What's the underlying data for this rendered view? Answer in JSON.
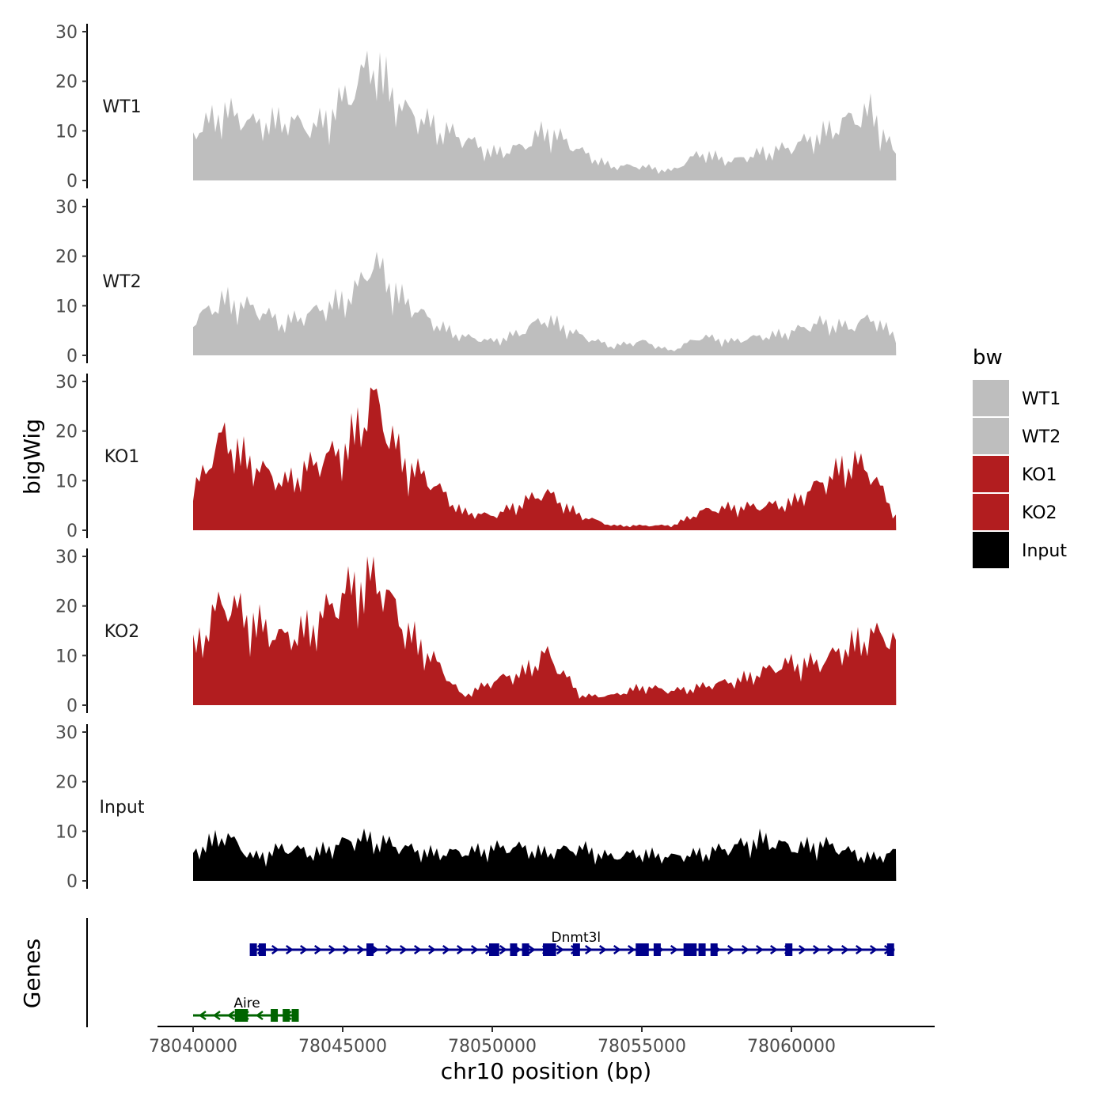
{
  "chart_data": {
    "type": "area",
    "ylabel": "bigWig",
    "xlabel": "chr10 position (bp)",
    "xlim": [
      78037600,
      78063900
    ],
    "ylim": [
      0,
      30
    ],
    "y_ticks": [
      "0",
      "10",
      "20",
      "30"
    ],
    "x_ticks": [
      {
        "value": 78040000,
        "label": "78040000"
      },
      {
        "value": 78045000,
        "label": "78045000"
      },
      {
        "value": 78050000,
        "label": "78050000"
      },
      {
        "value": 78055000,
        "label": "78055000"
      },
      {
        "value": 78060000,
        "label": "78060000"
      }
    ],
    "legend": {
      "title": "bw",
      "position": "right",
      "items": [
        {
          "label": "WT1",
          "color": "#bebebe"
        },
        {
          "label": "WT2",
          "color": "#bebebe"
        },
        {
          "label": "KO1",
          "color": "#b21d1f"
        },
        {
          "label": "KO2",
          "color": "#b21d1f"
        },
        {
          "label": "Input",
          "color": "#000000"
        }
      ]
    },
    "x_positions": [
      78040000,
      78041000,
      78042000,
      78043000,
      78044000,
      78045000,
      78045500,
      78046000,
      78047000,
      78048000,
      78049000,
      78050000,
      78051000,
      78051800,
      78053000,
      78054000,
      78055000,
      78056000,
      78057000,
      78058000,
      78059000,
      78060000,
      78061000,
      78062000,
      78062700,
      78063500
    ],
    "series": [
      {
        "name": "WT1",
        "color": "#bebebe",
        "values": [
          10,
          15,
          12,
          13,
          11,
          17,
          20,
          26,
          15,
          12,
          9,
          6,
          7,
          11,
          6,
          3,
          3,
          2,
          6,
          4,
          6,
          7,
          10,
          13,
          15,
          5
        ]
      },
      {
        "name": "WT2",
        "color": "#bebebe",
        "values": [
          7,
          12,
          10,
          7,
          9,
          12,
          14,
          20,
          12,
          7,
          4,
          3,
          5,
          8,
          4,
          2,
          3,
          1,
          4,
          3,
          4,
          5,
          7,
          6,
          8,
          4
        ]
      },
      {
        "name": "KO1",
        "color": "#b21d1f",
        "values": [
          8,
          20,
          14,
          10,
          14,
          17,
          22,
          28,
          15,
          10,
          4,
          3,
          6,
          8,
          3,
          1,
          1,
          1,
          4,
          5,
          5,
          6,
          10,
          15,
          12,
          3
        ]
      },
      {
        "name": "KO2",
        "color": "#b21d1f",
        "values": [
          12,
          22,
          18,
          14,
          17,
          23,
          26,
          29,
          17,
          10,
          2,
          5,
          7,
          11,
          2,
          2,
          4,
          3,
          4,
          5,
          7,
          9,
          9,
          13,
          15,
          14
        ]
      },
      {
        "name": "Input",
        "color": "#000000",
        "values": [
          6,
          10,
          5,
          7,
          6,
          8,
          9,
          9,
          7,
          6,
          6,
          7,
          7,
          6,
          7,
          5,
          6,
          5,
          6,
          7,
          9,
          7,
          8,
          6,
          5,
          6
        ]
      }
    ],
    "genes": {
      "track_label": "Genes",
      "items": [
        {
          "name": "Dnmt3l",
          "start": 78041950,
          "end": 78063450,
          "strand": "+",
          "color": "#00008b",
          "exons": [
            78042000,
            78042300,
            78045900,
            78050000,
            78050100,
            78050700,
            78051100,
            78051800,
            78052000,
            78052800,
            78054900,
            78055100,
            78055500,
            78056500,
            78056700,
            78057000,
            78057400,
            78059900,
            78063300
          ]
        },
        {
          "name": "Aire",
          "start": 78040000,
          "end": 78043500,
          "strand": "-",
          "color": "#006400",
          "exons": [
            78041500,
            78041700,
            78042700,
            78043100,
            78043400
          ]
        }
      ]
    }
  }
}
